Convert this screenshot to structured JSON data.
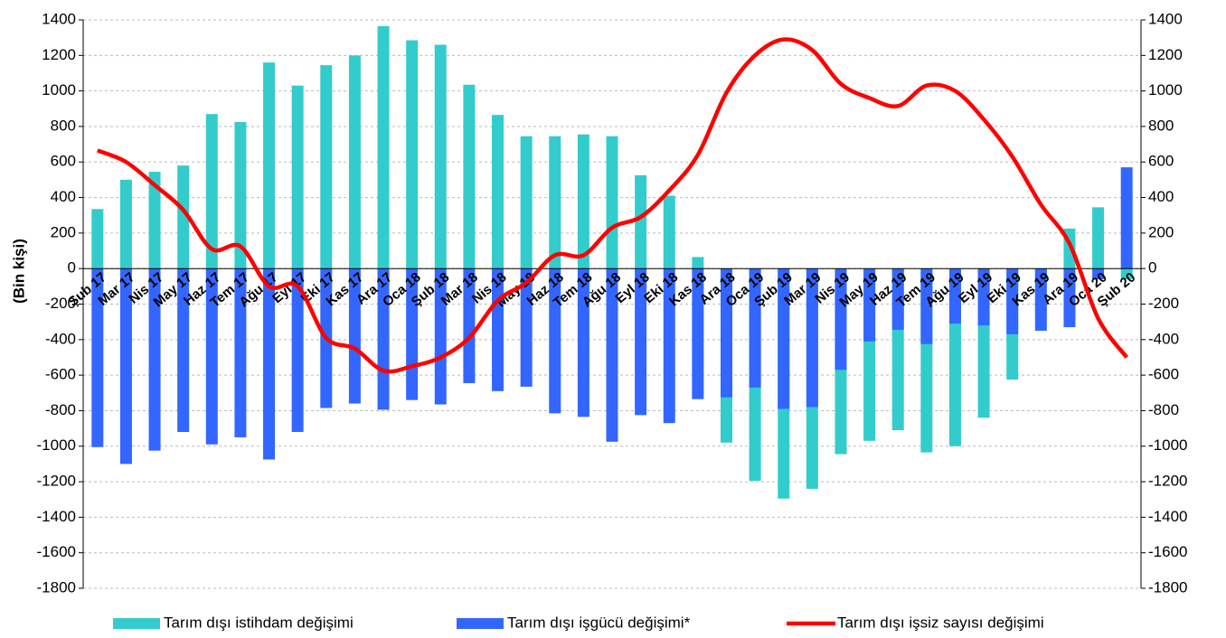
{
  "chart_data": {
    "type": "bar-line",
    "ylabel": "(Bin kişi)",
    "categories": [
      "Şub 17",
      "Mar 17",
      "Nis 17",
      "May 17",
      "Haz 17",
      "Tem 17",
      "Ağu 17",
      "Eyl 17",
      "Eki 17",
      "Kas 17",
      "Ara 17",
      "Oca 18",
      "Şub 18",
      "Mar 18",
      "Nis 18",
      "May 18",
      "Haz 18",
      "Tem 18",
      "Ağu 18",
      "Eyl 18",
      "Eki 18",
      "Kas 18",
      "Ara 18",
      "Oca 19",
      "Şub 19",
      "Mar 19",
      "Nis 19",
      "May 19",
      "Haz 19",
      "Tem 19",
      "Ağu 19",
      "Eyl 19",
      "Eki 19",
      "Kas 19",
      "Ara 19",
      "Oca 20",
      "Şub 20"
    ],
    "series": [
      {
        "name": "Tarım dışı istihdam değişimi",
        "type": "bar",
        "color": "#33cccc",
        "values": [
          335,
          500,
          545,
          580,
          870,
          825,
          1160,
          1030,
          1145,
          1200,
          1365,
          1285,
          1260,
          1035,
          865,
          745,
          745,
          755,
          745,
          525,
          410,
          65,
          -980,
          -1195,
          -1295,
          -1240,
          -1045,
          -970,
          -910,
          -1035,
          -1000,
          -840,
          -625,
          -250,
          225,
          345,
          -60
        ]
      },
      {
        "name": "Tarım dışı işgücü değişimi*",
        "type": "bar",
        "color": "#3366ff",
        "values": [
          -1005,
          -1100,
          -1025,
          -920,
          -990,
          -950,
          -1075,
          -920,
          -785,
          -760,
          -795,
          -740,
          -765,
          -645,
          -690,
          -665,
          -815,
          -835,
          -975,
          -825,
          -870,
          -735,
          -725,
          -670,
          -790,
          -780,
          -570,
          -410,
          -345,
          -425,
          -310,
          -320,
          -370,
          -350,
          -330,
          -60,
          570
        ]
      },
      {
        "name": "Tarım dışı işsiz sayısı değişimi",
        "type": "line",
        "color": "#ff0000",
        "axis": "y2",
        "values": [
          665,
          600,
          470,
          330,
          110,
          125,
          -100,
          -100,
          -390,
          -450,
          -575,
          -550,
          -500,
          -390,
          -180,
          -80,
          75,
          75,
          230,
          290,
          440,
          640,
          990,
          1200,
          1290,
          1230,
          1040,
          960,
          915,
          1030,
          1000,
          840,
          630,
          360,
          140,
          -280,
          -500
        ]
      }
    ],
    "ylim": [
      -1800,
      1400
    ],
    "yticks": [
      -1800,
      -1600,
      -1400,
      -1200,
      -1000,
      -800,
      -600,
      -400,
      -200,
      0,
      200,
      400,
      600,
      800,
      1000,
      1200,
      1400
    ],
    "y2lim": [
      -1800,
      1400
    ],
    "y2ticks": [
      -1800,
      -1600,
      -1400,
      -1200,
      -1000,
      -800,
      -600,
      -400,
      -200,
      0,
      200,
      400,
      600,
      800,
      1000,
      1200,
      1400
    ],
    "grid": true,
    "legend": "bottom"
  }
}
